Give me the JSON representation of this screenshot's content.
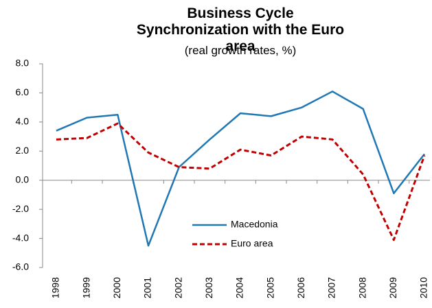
{
  "chart_data": {
    "type": "line",
    "title": "Business Cycle Synchronization with the Euro area",
    "subtitle": "(real growth rates, %)",
    "categories": [
      "1998",
      "1999",
      "2000",
      "2001",
      "2002",
      "2003",
      "2004",
      "2005",
      "2006",
      "2007",
      "2008",
      "2009",
      "2010"
    ],
    "series": [
      {
        "name": "Macedonia",
        "color": "#1f77b4",
        "dash": "solid",
        "values": [
          3.4,
          4.3,
          4.5,
          -4.5,
          0.9,
          2.8,
          4.6,
          4.4,
          5.0,
          6.1,
          4.9,
          -0.9,
          1.8
        ]
      },
      {
        "name": "Euro area",
        "color": "#c00000",
        "dash": "dashed",
        "values": [
          2.8,
          2.9,
          3.9,
          1.9,
          0.9,
          0.8,
          2.1,
          1.7,
          3.0,
          2.8,
          0.4,
          -4.1,
          1.7
        ]
      }
    ],
    "ylim": [
      -6,
      8
    ],
    "yticks": [
      {
        "value": -6,
        "label": "-6.0"
      },
      {
        "value": -4,
        "label": "-4.0"
      },
      {
        "value": -2,
        "label": "-2.0"
      },
      {
        "value": 0,
        "label": "0.0"
      },
      {
        "value": 2,
        "label": "2.0"
      },
      {
        "value": 4,
        "label": "4.0"
      },
      {
        "value": 6,
        "label": "6.0"
      },
      {
        "value": 8,
        "label": "8.0"
      }
    ],
    "grid": false,
    "legend": "lower center"
  }
}
